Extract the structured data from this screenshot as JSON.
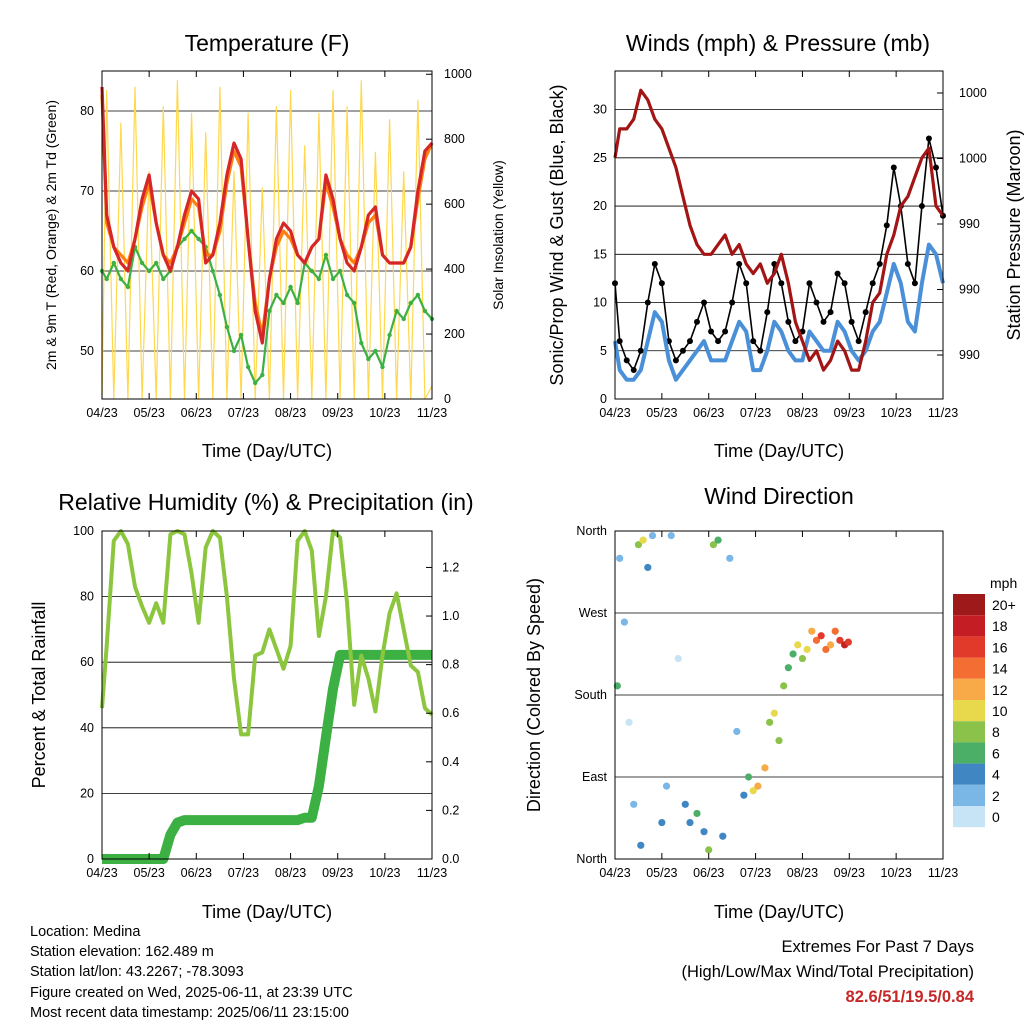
{
  "panels": {
    "temperature": {
      "title": "Temperature (F)",
      "xlabel": "Time (Day/UTC)",
      "ylabel_left": "2m & 9m T (Red, Orange) & 2m Td (Green)",
      "ylabel_right": "Solar Insolation (Yellow)"
    },
    "winds": {
      "title": "Winds (mph) & Pressure (mb)",
      "xlabel": "Time (Day/UTC)",
      "ylabel_left": "Sonic/Prop Wind & Gust (Blue, Black)",
      "ylabel_right": "Station Pressure (Maroon)"
    },
    "humidity": {
      "title": "Relative Humidity (%) & Precipitation (in)",
      "xlabel": "Time (Day/UTC)",
      "ylabel_left": "Percent & Total Rainfall"
    },
    "direction": {
      "title": "Wind Direction",
      "xlabel": "Time (Day/UTC)",
      "ylabel_left": "Direction (Colored By Speed)",
      "legend_title": "mph"
    }
  },
  "info": {
    "location": "Location: Medina",
    "elevation": "Station elevation: 162.489 m",
    "latlon": "Station lat/lon: 43.2267; -78.3093",
    "created": "Figure created on Wed, 2025-06-11, at 23:39 UTC",
    "recent": "Most recent data timestamp: 2025/06/11 23:15:00"
  },
  "extremes": {
    "line1": "Extremes For Past 7 Days",
    "line2": "(High/Low/Max Wind/Total Precipitation)",
    "values": "82.6/51/19.5/0.84"
  },
  "colors": {
    "t2m": "#d62728",
    "t9m": "#ff7f0e",
    "td": "#3cb043",
    "solar": "#ffd84d",
    "gust": "#000000",
    "wind": "#4a90d9",
    "pressure": "#a31515",
    "rh": "#8cc63f",
    "precip": "#3cb043",
    "extreme_values": "#c62828"
  },
  "chart_data": [
    {
      "type": "line",
      "title": "Temperature (F)",
      "xlabel": "Time (Day/UTC)",
      "ylabel": "2m & 9m T (Red, Orange) & 2m Td (Green)",
      "ylabel_right": "Solar Insolation (Yellow)",
      "xtick_labels": [
        "04/23",
        "05/23",
        "06/23",
        "07/23",
        "08/23",
        "09/23",
        "10/23",
        "11/23"
      ],
      "yticks_left": [
        50,
        60,
        70,
        80
      ],
      "yticks_right": [
        0,
        200,
        400,
        600,
        800,
        1000
      ],
      "ylim_left": [
        44,
        85
      ],
      "ylim_right": [
        0,
        1010
      ],
      "x": [
        0.0,
        0.1,
        0.25,
        0.4,
        0.55,
        0.7,
        0.85,
        1.0,
        1.15,
        1.3,
        1.45,
        1.6,
        1.75,
        1.9,
        2.05,
        2.2,
        2.35,
        2.5,
        2.65,
        2.8,
        2.95,
        3.1,
        3.25,
        3.4,
        3.55,
        3.7,
        3.85,
        4.0,
        4.15,
        4.3,
        4.45,
        4.6,
        4.75,
        4.9,
        5.05,
        5.2,
        5.35,
        5.5,
        5.65,
        5.8,
        5.95,
        6.1,
        6.25,
        6.4,
        6.55,
        6.7,
        6.85,
        7.0
      ],
      "series": [
        {
          "name": "2m T",
          "color": "#d62728",
          "values": [
            83,
            67,
            63,
            61,
            60,
            64,
            69,
            72,
            66,
            62,
            60,
            63,
            67,
            70,
            69,
            61,
            62,
            66,
            72,
            76,
            74,
            64,
            55,
            51,
            59,
            64,
            66,
            65,
            62,
            61,
            63,
            64,
            72,
            69,
            64,
            61,
            60,
            63,
            67,
            68,
            62,
            61,
            61,
            61,
            63,
            70,
            75,
            76
          ]
        },
        {
          "name": "9m T",
          "color": "#ff7f0e",
          "values": [
            82,
            66,
            63,
            62,
            61,
            64,
            68,
            71,
            66,
            62,
            61,
            63,
            66,
            69,
            68,
            62,
            62,
            65,
            71,
            75,
            73,
            64,
            56,
            52,
            59,
            63,
            65,
            64,
            62,
            61,
            63,
            64,
            71,
            68,
            64,
            62,
            61,
            63,
            66,
            67,
            62,
            61,
            61,
            61,
            63,
            69,
            74,
            76
          ]
        },
        {
          "name": "2m Td",
          "color": "#3cb043",
          "values": [
            60,
            59,
            61,
            59,
            58,
            63,
            61,
            60,
            61,
            59,
            60,
            63,
            64,
            65,
            64,
            63,
            60,
            57,
            53,
            50,
            52,
            48,
            46,
            47,
            55,
            57,
            56,
            58,
            56,
            61,
            60,
            59,
            62,
            59,
            60,
            57,
            56,
            51,
            49,
            50,
            48,
            52,
            55,
            54,
            56,
            57,
            55,
            54
          ]
        },
        {
          "name": "Solar Insolation",
          "color": "#ffd84d",
          "axis": "right",
          "values": [
            0,
            950,
            0,
            850,
            0,
            960,
            0,
            700,
            0,
            900,
            0,
            980,
            0,
            880,
            0,
            820,
            0,
            960,
            0,
            700,
            0,
            880,
            0,
            650,
            0,
            900,
            0,
            950,
            0,
            780,
            0,
            880,
            0,
            950,
            0,
            900,
            0,
            980,
            0,
            760,
            0,
            860,
            0,
            700,
            0,
            920,
            0,
            40
          ]
        }
      ]
    },
    {
      "type": "line",
      "title": "Winds (mph) & Pressure (mb)",
      "xlabel": "Time (Day/UTC)",
      "ylabel": "Sonic/Prop Wind & Gust (Blue, Black)",
      "ylabel_right": "Station Pressure (Maroon)",
      "xtick_labels": [
        "04/23",
        "05/23",
        "06/23",
        "07/23",
        "08/23",
        "09/23",
        "10/23",
        "11/23"
      ],
      "yticks_left": [
        0,
        5,
        10,
        15,
        20,
        25,
        30
      ],
      "ylim_left": [
        0,
        34
      ],
      "ytick_labels_right": [
        "1000",
        "1000",
        "990",
        "990",
        "990"
      ],
      "x": [
        0.0,
        0.1,
        0.25,
        0.4,
        0.55,
        0.7,
        0.85,
        1.0,
        1.15,
        1.3,
        1.45,
        1.6,
        1.75,
        1.9,
        2.05,
        2.2,
        2.35,
        2.5,
        2.65,
        2.8,
        2.95,
        3.1,
        3.25,
        3.4,
        3.55,
        3.7,
        3.85,
        4.0,
        4.15,
        4.3,
        4.45,
        4.6,
        4.75,
        4.9,
        5.05,
        5.2,
        5.35,
        5.5,
        5.65,
        5.8,
        5.95,
        6.1,
        6.25,
        6.4,
        6.55,
        6.7,
        6.85,
        7.0
      ],
      "series": [
        {
          "name": "Gust",
          "color": "#000000",
          "values": [
            12,
            6,
            4,
            3,
            5,
            10,
            14,
            12,
            6,
            4,
            5,
            6,
            8,
            10,
            7,
            6,
            7,
            10,
            14,
            12,
            6,
            5,
            9,
            14,
            12,
            8,
            6,
            7,
            12,
            10,
            8,
            9,
            13,
            12,
            8,
            6,
            9,
            12,
            14,
            18,
            24,
            20,
            14,
            12,
            20,
            27,
            24,
            19
          ]
        },
        {
          "name": "Wind",
          "color": "#4a90d9",
          "values": [
            6,
            3,
            2,
            2,
            3,
            6,
            9,
            8,
            4,
            2,
            3,
            4,
            5,
            6,
            4,
            4,
            4,
            6,
            8,
            7,
            3,
            3,
            5,
            8,
            7,
            5,
            4,
            4,
            7,
            6,
            5,
            5,
            8,
            7,
            5,
            4,
            5,
            7,
            8,
            11,
            14,
            12,
            8,
            7,
            12,
            16,
            15,
            12
          ]
        },
        {
          "name": "Station Pressure",
          "color": "#a31515",
          "values": [
            25,
            28,
            28,
            29,
            32,
            31,
            29,
            28,
            26,
            24,
            21,
            18,
            16,
            15,
            15,
            16,
            17,
            15,
            16,
            14,
            13,
            14,
            12,
            13,
            15,
            12,
            8,
            6,
            4,
            5,
            3,
            4,
            6,
            5,
            3,
            3,
            6,
            10,
            11,
            15,
            17,
            20,
            21,
            23,
            25,
            26,
            20,
            19
          ]
        }
      ]
    },
    {
      "type": "line",
      "title": "Relative Humidity (%) & Precipitation (in)",
      "xlabel": "Time (Day/UTC)",
      "ylabel": "Percent & Total Rainfall",
      "xtick_labels": [
        "04/23",
        "05/23",
        "06/23",
        "07/23",
        "08/23",
        "09/23",
        "10/23",
        "11/23"
      ],
      "yticks_left": [
        0,
        20,
        40,
        60,
        80,
        100
      ],
      "yticks_right": [
        0.0,
        0.2,
        0.4,
        0.6,
        0.8,
        1.0,
        1.2
      ],
      "ylim_left": [
        0,
        100
      ],
      "ylim_right": [
        0,
        1.35
      ],
      "x": [
        0.0,
        0.1,
        0.25,
        0.4,
        0.55,
        0.7,
        0.85,
        1.0,
        1.15,
        1.3,
        1.45,
        1.6,
        1.75,
        1.9,
        2.05,
        2.2,
        2.35,
        2.5,
        2.65,
        2.8,
        2.95,
        3.1,
        3.25,
        3.4,
        3.55,
        3.7,
        3.85,
        4.0,
        4.15,
        4.3,
        4.45,
        4.6,
        4.75,
        4.9,
        5.05,
        5.2,
        5.35,
        5.5,
        5.65,
        5.8,
        5.95,
        6.1,
        6.25,
        6.4,
        6.55,
        6.7,
        6.85,
        7.0
      ],
      "series": [
        {
          "name": "Relative Humidity",
          "color": "#8cc63f",
          "values": [
            46,
            65,
            97,
            100,
            96,
            83,
            77,
            72,
            78,
            72,
            99,
            100,
            99,
            87,
            72,
            95,
            100,
            98,
            80,
            55,
            38,
            38,
            62,
            63,
            70,
            64,
            58,
            65,
            97,
            100,
            94,
            68,
            80,
            100,
            98,
            78,
            47,
            62,
            55,
            45,
            62,
            75,
            81,
            70,
            59,
            57,
            46,
            44
          ]
        },
        {
          "name": "Total Precipitation",
          "color": "#3cb043",
          "axis": "right",
          "values": [
            0.0,
            0.0,
            0.0,
            0.0,
            0.0,
            0.0,
            0.0,
            0.0,
            0.0,
            0.0,
            0.1,
            0.15,
            0.16,
            0.16,
            0.16,
            0.16,
            0.16,
            0.16,
            0.16,
            0.16,
            0.16,
            0.16,
            0.16,
            0.16,
            0.16,
            0.16,
            0.16,
            0.16,
            0.16,
            0.17,
            0.17,
            0.3,
            0.5,
            0.7,
            0.84,
            0.84,
            0.84,
            0.84,
            0.84,
            0.84,
            0.84,
            0.84,
            0.84,
            0.84,
            0.84,
            0.84,
            0.84,
            0.84
          ]
        }
      ]
    },
    {
      "type": "scatter",
      "title": "Wind Direction",
      "xlabel": "Time (Day/UTC)",
      "ylabel": "Direction (Colored By Speed)",
      "xtick_labels": [
        "04/23",
        "05/23",
        "06/23",
        "07/23",
        "08/23",
        "09/23",
        "10/23",
        "11/23"
      ],
      "ytick_labels": [
        "North",
        "East",
        "South",
        "West",
        "North"
      ],
      "ylim_degrees": [
        0,
        360
      ],
      "legend": {
        "title": "mph",
        "labels": [
          "20+",
          "18",
          "16",
          "14",
          "12",
          "10",
          "8",
          "6",
          "4",
          "2",
          "0"
        ],
        "colors": [
          "#9e1a1a",
          "#c41e24",
          "#e23a2a",
          "#f46d32",
          "#f8a948",
          "#e8d94c",
          "#8bc34a",
          "#4caf68",
          "#3f86c3",
          "#7ab6e6",
          "#c6e4f6"
        ]
      },
      "points": [
        {
          "x": 0.05,
          "dir": 190,
          "speed": 6
        },
        {
          "x": 0.1,
          "dir": 330,
          "speed": 3
        },
        {
          "x": 0.2,
          "dir": 260,
          "speed": 2
        },
        {
          "x": 0.3,
          "dir": 150,
          "speed": 1
        },
        {
          "x": 0.4,
          "dir": 60,
          "speed": 2
        },
        {
          "x": 0.5,
          "dir": 345,
          "speed": 8
        },
        {
          "x": 0.55,
          "dir": 15,
          "speed": 4
        },
        {
          "x": 0.6,
          "dir": 350,
          "speed": 10
        },
        {
          "x": 0.7,
          "dir": 320,
          "speed": 4
        },
        {
          "x": 0.8,
          "dir": 355,
          "speed": 2
        },
        {
          "x": 1.0,
          "dir": 40,
          "speed": 4
        },
        {
          "x": 1.1,
          "dir": 80,
          "speed": 3
        },
        {
          "x": 1.2,
          "dir": 355,
          "speed": 2
        },
        {
          "x": 1.35,
          "dir": 220,
          "speed": 1
        },
        {
          "x": 1.5,
          "dir": 60,
          "speed": 5
        },
        {
          "x": 1.6,
          "dir": 40,
          "speed": 4
        },
        {
          "x": 1.75,
          "dir": 50,
          "speed": 6
        },
        {
          "x": 1.9,
          "dir": 30,
          "speed": 5
        },
        {
          "x": 2.0,
          "dir": 10,
          "speed": 8
        },
        {
          "x": 2.1,
          "dir": 345,
          "speed": 9
        },
        {
          "x": 2.2,
          "dir": 350,
          "speed": 6
        },
        {
          "x": 2.3,
          "dir": 25,
          "speed": 5
        },
        {
          "x": 2.45,
          "dir": 330,
          "speed": 2
        },
        {
          "x": 2.6,
          "dir": 140,
          "speed": 2
        },
        {
          "x": 2.75,
          "dir": 70,
          "speed": 5
        },
        {
          "x": 2.85,
          "dir": 90,
          "speed": 7
        },
        {
          "x": 2.95,
          "dir": 75,
          "speed": 10
        },
        {
          "x": 3.05,
          "dir": 80,
          "speed": 12
        },
        {
          "x": 3.2,
          "dir": 100,
          "speed": 12
        },
        {
          "x": 3.3,
          "dir": 150,
          "speed": 9
        },
        {
          "x": 3.4,
          "dir": 160,
          "speed": 10
        },
        {
          "x": 3.5,
          "dir": 130,
          "speed": 8
        },
        {
          "x": 3.6,
          "dir": 190,
          "speed": 8
        },
        {
          "x": 3.7,
          "dir": 210,
          "speed": 6
        },
        {
          "x": 3.8,
          "dir": 225,
          "speed": 7
        },
        {
          "x": 3.9,
          "dir": 235,
          "speed": 11
        },
        {
          "x": 4.0,
          "dir": 220,
          "speed": 9
        },
        {
          "x": 4.1,
          "dir": 230,
          "speed": 10
        },
        {
          "x": 4.2,
          "dir": 250,
          "speed": 12
        },
        {
          "x": 4.3,
          "dir": 240,
          "speed": 14
        },
        {
          "x": 4.4,
          "dir": 245,
          "speed": 16
        },
        {
          "x": 4.5,
          "dir": 230,
          "speed": 15
        },
        {
          "x": 4.6,
          "dir": 235,
          "speed": 12
        },
        {
          "x": 4.7,
          "dir": 250,
          "speed": 14
        },
        {
          "x": 4.8,
          "dir": 240,
          "speed": 17
        },
        {
          "x": 4.9,
          "dir": 235,
          "speed": 18
        },
        {
          "x": 4.98,
          "dir": 238,
          "speed": 16
        }
      ]
    }
  ]
}
